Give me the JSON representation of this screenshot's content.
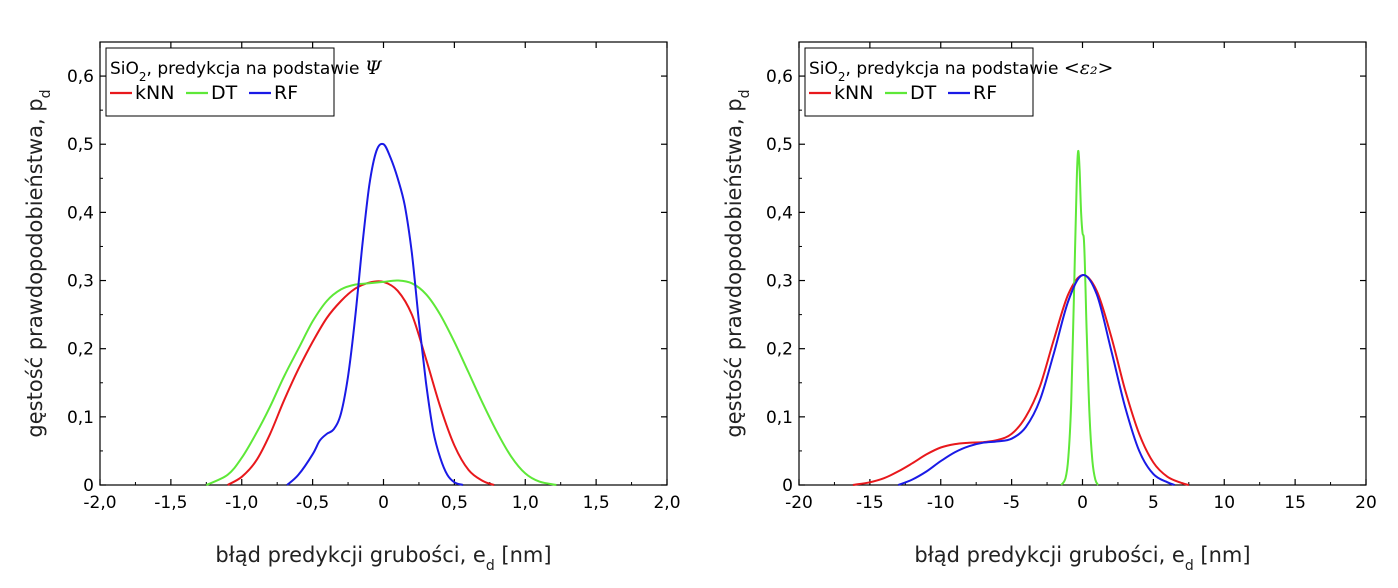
{
  "chart_data": [
    {
      "type": "line",
      "title": "",
      "xlabel": "błąd predykcji grubości, e",
      "xlabel_sub": "d",
      "xlabel_unit": " [nm]",
      "ylabel": "gęstość prawdopodobieństwa, p",
      "ylabel_sub": "d",
      "xlim": [
        -2.0,
        2.0
      ],
      "ylim": [
        0,
        0.65
      ],
      "xticks": [
        -2.0,
        -1.5,
        -1.0,
        -0.5,
        0,
        0.5,
        1.0,
        1.5,
        2.0
      ],
      "xtick_labels": [
        "-2,0",
        "-1,5",
        "-1,0",
        "-0,5",
        "0",
        "0,5",
        "1,0",
        "1,5",
        "2,0"
      ],
      "yticks": [
        0,
        0.1,
        0.2,
        0.3,
        0.4,
        0.5,
        0.6
      ],
      "ytick_labels": [
        "0",
        "0,1",
        "0,2",
        "0,3",
        "0,4",
        "0,5",
        "0,6"
      ],
      "legend": {
        "title_pre": "SiO",
        "title_sub": "2",
        "title_post": ", predykcja na podstawie ",
        "title_symbol": "Ψ",
        "position": "top-left"
      },
      "series": [
        {
          "name": "kNN",
          "color": "#e8181c",
          "x": [
            -1.1,
            -1.0,
            -0.9,
            -0.8,
            -0.7,
            -0.6,
            -0.5,
            -0.4,
            -0.3,
            -0.2,
            -0.1,
            0.0,
            0.1,
            0.2,
            0.3,
            0.4,
            0.5,
            0.6,
            0.7,
            0.78
          ],
          "y": [
            0,
            0.012,
            0.035,
            0.075,
            0.125,
            0.17,
            0.21,
            0.245,
            0.27,
            0.288,
            0.297,
            0.298,
            0.285,
            0.25,
            0.185,
            0.115,
            0.058,
            0.022,
            0.006,
            0
          ]
        },
        {
          "name": "DT",
          "color": "#5ee838",
          "x": [
            -1.25,
            -1.1,
            -1.0,
            -0.9,
            -0.8,
            -0.7,
            -0.6,
            -0.5,
            -0.4,
            -0.3,
            -0.2,
            -0.1,
            0.0,
            0.1,
            0.2,
            0.3,
            0.4,
            0.5,
            0.6,
            0.7,
            0.8,
            0.9,
            1.0,
            1.1,
            1.22
          ],
          "y": [
            0,
            0.015,
            0.04,
            0.075,
            0.115,
            0.16,
            0.2,
            0.24,
            0.27,
            0.287,
            0.294,
            0.296,
            0.298,
            0.3,
            0.296,
            0.28,
            0.25,
            0.21,
            0.165,
            0.12,
            0.078,
            0.042,
            0.017,
            0.005,
            0
          ]
        },
        {
          "name": "RF",
          "color": "#1a1ae6",
          "x": [
            -0.68,
            -0.6,
            -0.5,
            -0.45,
            -0.4,
            -0.35,
            -0.3,
            -0.25,
            -0.2,
            -0.15,
            -0.1,
            -0.05,
            0.0,
            0.05,
            0.1,
            0.15,
            0.2,
            0.25,
            0.3,
            0.35,
            0.4,
            0.45,
            0.5,
            0.56
          ],
          "y": [
            0,
            0.015,
            0.045,
            0.065,
            0.075,
            0.082,
            0.105,
            0.16,
            0.245,
            0.35,
            0.44,
            0.49,
            0.5,
            0.48,
            0.45,
            0.41,
            0.34,
            0.24,
            0.15,
            0.08,
            0.04,
            0.015,
            0.004,
            0
          ]
        }
      ]
    },
    {
      "type": "line",
      "title": "",
      "xlabel": "błąd predykcji grubości, e",
      "xlabel_sub": "d",
      "xlabel_unit": " [nm]",
      "ylabel": "gęstość prawdopodobieństwa, p",
      "ylabel_sub": "d",
      "xlim": [
        -20,
        20
      ],
      "ylim": [
        0,
        0.65
      ],
      "xticks": [
        -20,
        -15,
        -10,
        -5,
        0,
        5,
        10,
        15,
        20
      ],
      "xtick_labels": [
        "-20",
        "-15",
        "-10",
        "-5",
        "0",
        "5",
        "10",
        "15",
        "20"
      ],
      "yticks": [
        0,
        0.1,
        0.2,
        0.3,
        0.4,
        0.5,
        0.6
      ],
      "ytick_labels": [
        "0",
        "0,1",
        "0,2",
        "0,3",
        "0,4",
        "0,5",
        "0,6"
      ],
      "legend": {
        "title_pre": "SiO",
        "title_sub": "2",
        "title_post": ", predykcja na podstawie ",
        "title_symbol": "<ε₂>",
        "position": "top-left"
      },
      "series": [
        {
          "name": "kNN",
          "color": "#e8181c",
          "x": [
            -16.2,
            -15,
            -14,
            -13,
            -12,
            -11,
            -10,
            -9,
            -8,
            -7,
            -6,
            -5,
            -4,
            -3,
            -2,
            -1,
            0,
            1,
            2,
            3,
            4,
            5,
            6,
            7,
            7.5
          ],
          "y": [
            0,
            0.004,
            0.01,
            0.02,
            0.032,
            0.045,
            0.055,
            0.06,
            0.062,
            0.063,
            0.066,
            0.075,
            0.1,
            0.145,
            0.215,
            0.28,
            0.308,
            0.285,
            0.22,
            0.14,
            0.075,
            0.033,
            0.012,
            0.003,
            0
          ]
        },
        {
          "name": "DT",
          "color": "#5ee838",
          "x": [
            -1.5,
            -1.2,
            -1.0,
            -0.8,
            -0.6,
            -0.4,
            -0.3,
            -0.2,
            -0.1,
            0.0,
            0.1,
            0.2,
            0.3,
            0.5,
            0.7,
            0.9,
            1.1
          ],
          "y": [
            0,
            0.01,
            0.04,
            0.12,
            0.28,
            0.45,
            0.49,
            0.46,
            0.4,
            0.37,
            0.36,
            0.3,
            0.22,
            0.1,
            0.035,
            0.008,
            0
          ]
        },
        {
          "name": "RF",
          "color": "#1a1ae6",
          "x": [
            -13,
            -12,
            -11,
            -10,
            -9,
            -8,
            -7,
            -6,
            -5,
            -4,
            -3,
            -2,
            -1,
            0,
            1,
            2,
            3,
            4,
            5,
            6,
            6.5
          ],
          "y": [
            0,
            0.008,
            0.02,
            0.035,
            0.048,
            0.057,
            0.062,
            0.064,
            0.068,
            0.085,
            0.125,
            0.195,
            0.27,
            0.308,
            0.28,
            0.2,
            0.115,
            0.05,
            0.016,
            0.004,
            0
          ]
        }
      ]
    }
  ]
}
